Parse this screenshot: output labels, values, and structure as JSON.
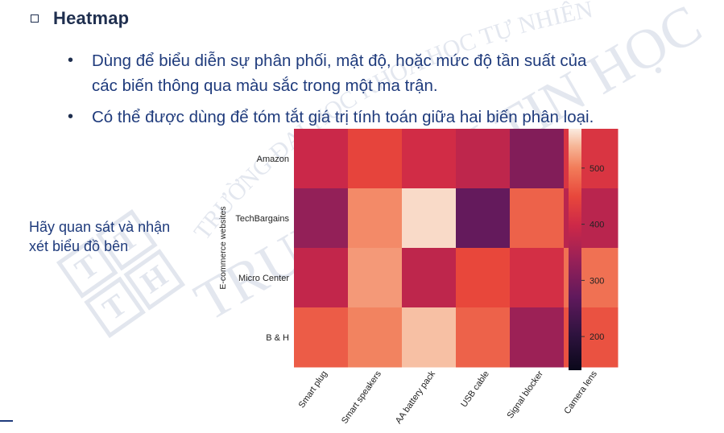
{
  "heading": {
    "title": "Heatmap",
    "icon": "square-bullet-icon"
  },
  "bullets": [
    {
      "mark": "•",
      "lines": [
        "Dùng để biểu diễn sự phân phối, mật độ, hoặc mức độ tần suất của",
        "các biến thông qua màu sắc trong một ma trận."
      ]
    },
    {
      "mark": "•",
      "lines": [
        "Có thể được dùng để tóm tắt giá trị tính toán giữa hai biến phân loại."
      ]
    }
  ],
  "side_note": {
    "line1": "Hãy quan sát và nhận",
    "line2": "xét biểu đồ bên"
  },
  "watermark": {
    "text_arc": "TRƯỜNG ĐẠI HỌC KHOA HỌC TỰ NHIÊN",
    "text_main": "TRUNG TÂM TIN HỌC",
    "logo_letters": [
      "T",
      "T",
      "T",
      "H"
    ]
  },
  "chart_data": {
    "type": "heatmap",
    "x": [
      "Smart plug",
      "Smart speakers",
      "AA battery pack",
      "USB cable",
      "Signal blocker",
      "Camera lens"
    ],
    "y": [
      "Amazon",
      "TechBargains",
      "Micro Center",
      "B & H"
    ],
    "ylabel": "E-commerce websites",
    "xlabel": "",
    "values": [
      [
        395,
        445,
        405,
        380,
        310,
        420
      ],
      [
        330,
        510,
        560,
        275,
        475,
        375
      ],
      [
        385,
        520,
        380,
        450,
        410,
        490
      ],
      [
        470,
        505,
        545,
        475,
        340,
        460
      ]
    ],
    "colorbar": {
      "min": 140,
      "max": 570,
      "ticks": [
        200,
        300,
        400,
        500
      ]
    },
    "colormap": "rocket"
  }
}
